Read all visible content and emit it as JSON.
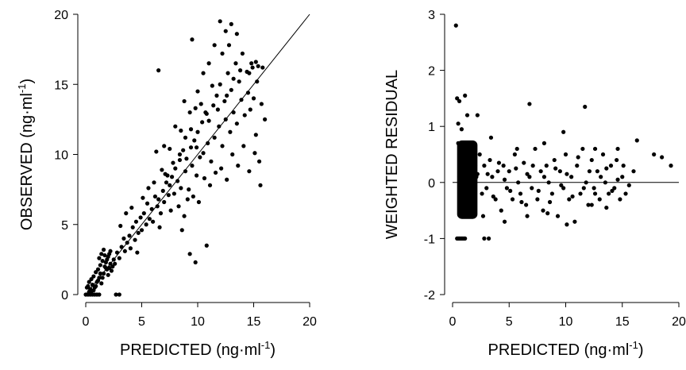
{
  "chart_data": [
    {
      "type": "scatter",
      "xlabel": "PREDICTED (ng·ml",
      "xlabel_sup": "-1",
      "xlabel_end": ")",
      "ylabel": "OBSERVED (ng·ml",
      "ylabel_sup": "-1",
      "ylabel_end": ")",
      "xlim": [
        0,
        20
      ],
      "ylim": [
        0,
        20
      ],
      "xticks": [
        "0",
        "5",
        "10",
        "15",
        "20"
      ],
      "yticks": [
        "0",
        "5",
        "10",
        "15",
        "20"
      ],
      "grid": false,
      "reference_line": {
        "type": "identity",
        "from": [
          0,
          0
        ],
        "to": [
          20,
          20
        ]
      },
      "points": [
        [
          0.0,
          0.0
        ],
        [
          0.2,
          0.0
        ],
        [
          0.4,
          0.0
        ],
        [
          0.6,
          0.0
        ],
        [
          0.8,
          0.0
        ],
        [
          1.0,
          0.0
        ],
        [
          1.2,
          0.0
        ],
        [
          2.7,
          0.0
        ],
        [
          3.0,
          0.0
        ],
        [
          0.1,
          0.5
        ],
        [
          0.2,
          0.6
        ],
        [
          0.3,
          0.9
        ],
        [
          0.4,
          0.4
        ],
        [
          0.5,
          1.1
        ],
        [
          0.6,
          0.7
        ],
        [
          0.7,
          1.3
        ],
        [
          0.8,
          0.5
        ],
        [
          0.9,
          1.6
        ],
        [
          1.0,
          0.9
        ],
        [
          1.1,
          1.8
        ],
        [
          1.2,
          1.2
        ],
        [
          1.3,
          2.1
        ],
        [
          1.4,
          0.8
        ],
        [
          1.5,
          2.4
        ],
        [
          1.6,
          1.5
        ],
        [
          1.7,
          2.8
        ],
        [
          1.8,
          1.9
        ],
        [
          1.9,
          2.5
        ],
        [
          2.0,
          1.4
        ],
        [
          2.1,
          2.9
        ],
        [
          2.2,
          2.2
        ],
        [
          2.3,
          1.7
        ],
        [
          1.1,
          1.0
        ],
        [
          1.3,
          1.5
        ],
        [
          1.5,
          1.2
        ],
        [
          1.7,
          2.0
        ],
        [
          1.9,
          1.8
        ],
        [
          2.1,
          1.9
        ],
        [
          0.5,
          0.2
        ],
        [
          0.7,
          0.3
        ],
        [
          0.9,
          0.6
        ],
        [
          1.2,
          2.6
        ],
        [
          1.4,
          2.9
        ],
        [
          1.6,
          3.2
        ],
        [
          1.8,
          2.3
        ],
        [
          2.0,
          2.7
        ],
        [
          2.2,
          3.1
        ],
        [
          2.4,
          2.0
        ],
        [
          0.3,
          0.2
        ],
        [
          2.5,
          2.5
        ],
        [
          2.6,
          2.2
        ],
        [
          2.8,
          3.0
        ],
        [
          3.0,
          2.6
        ],
        [
          3.2,
          3.4
        ],
        [
          3.4,
          4.0
        ],
        [
          3.5,
          3.1
        ],
        [
          3.7,
          3.7
        ],
        [
          3.9,
          4.2
        ],
        [
          4.0,
          3.3
        ],
        [
          4.2,
          4.8
        ],
        [
          4.4,
          3.9
        ],
        [
          4.5,
          5.2
        ],
        [
          4.7,
          4.4
        ],
        [
          4.9,
          5.5
        ],
        [
          5.0,
          4.6
        ],
        [
          5.2,
          5.8
        ],
        [
          5.4,
          5.0
        ],
        [
          5.5,
          6.5
        ],
        [
          5.7,
          5.4
        ],
        [
          5.9,
          6.1
        ],
        [
          6.0,
          5.2
        ],
        [
          6.2,
          7.0
        ],
        [
          6.4,
          6.3
        ],
        [
          6.5,
          6.8
        ],
        [
          6.7,
          5.8
        ],
        [
          6.9,
          7.4
        ],
        [
          7.0,
          6.6
        ],
        [
          7.2,
          8.0
        ],
        [
          7.4,
          7.1
        ],
        [
          3.1,
          4.9
        ],
        [
          3.6,
          5.8
        ],
        [
          4.1,
          6.2
        ],
        [
          4.6,
          3.0
        ],
        [
          5.1,
          6.9
        ],
        [
          5.6,
          7.6
        ],
        [
          6.1,
          8.0
        ],
        [
          6.6,
          4.8
        ],
        [
          7.1,
          8.6
        ],
        [
          7.6,
          6.0
        ],
        [
          7.5,
          7.8
        ],
        [
          7.7,
          8.4
        ],
        [
          7.9,
          7.2
        ],
        [
          8.0,
          9.0
        ],
        [
          8.2,
          8.1
        ],
        [
          8.4,
          9.6
        ],
        [
          8.5,
          7.6
        ],
        [
          8.7,
          10.3
        ],
        [
          8.9,
          8.8
        ],
        [
          9.0,
          9.7
        ],
        [
          9.2,
          7.5
        ],
        [
          9.4,
          10.5
        ],
        [
          9.5,
          9.2
        ],
        [
          9.7,
          11.0
        ],
        [
          9.9,
          8.5
        ],
        [
          10.0,
          11.6
        ],
        [
          10.2,
          9.8
        ],
        [
          10.4,
          12.3
        ],
        [
          10.5,
          10.1
        ],
        [
          10.7,
          13.0
        ],
        [
          10.9,
          10.8
        ],
        [
          11.0,
          12.4
        ],
        [
          11.2,
          9.5
        ],
        [
          11.4,
          13.5
        ],
        [
          11.5,
          11.2
        ],
        [
          11.7,
          14.2
        ],
        [
          11.9,
          12.0
        ],
        [
          12.0,
          15.0
        ],
        [
          12.2,
          10.6
        ],
        [
          12.4,
          13.8
        ],
        [
          12.5,
          12.5
        ],
        [
          12.7,
          15.8
        ],
        [
          12.9,
          11.6
        ],
        [
          13.0,
          14.6
        ],
        [
          13.2,
          13.0
        ],
        [
          13.4,
          16.5
        ],
        [
          13.5,
          12.2
        ],
        [
          13.7,
          15.2
        ],
        [
          13.9,
          13.9
        ],
        [
          14.0,
          17.2
        ],
        [
          14.2,
          12.8
        ],
        [
          14.4,
          15.9
        ],
        [
          14.5,
          14.4
        ],
        [
          14.7,
          13.2
        ],
        [
          14.9,
          16.2
        ],
        [
          15.0,
          14.0
        ],
        [
          15.2,
          11.4
        ],
        [
          15.4,
          16.3
        ],
        [
          15.5,
          9.5
        ],
        [
          15.7,
          13.6
        ],
        [
          8.3,
          6.3
        ],
        [
          8.8,
          5.6
        ],
        [
          9.3,
          2.9
        ],
        [
          9.8,
          2.3
        ],
        [
          10.8,
          3.5
        ],
        [
          8.6,
          4.6
        ],
        [
          9.1,
          6.8
        ],
        [
          9.6,
          7.0
        ],
        [
          10.1,
          6.6
        ],
        [
          10.6,
          8.3
        ],
        [
          11.1,
          7.8
        ],
        [
          11.6,
          8.7
        ],
        [
          12.1,
          9.0
        ],
        [
          12.6,
          8.2
        ],
        [
          13.1,
          10.0
        ],
        [
          13.6,
          9.2
        ],
        [
          14.1,
          10.6
        ],
        [
          14.6,
          8.8
        ],
        [
          15.1,
          10.1
        ],
        [
          15.6,
          7.8
        ],
        [
          6.5,
          16.0
        ],
        [
          9.5,
          18.2
        ],
        [
          12.0,
          19.5
        ],
        [
          12.5,
          18.8
        ],
        [
          13.0,
          19.3
        ],
        [
          13.5,
          18.6
        ],
        [
          12.8,
          17.8
        ],
        [
          12.2,
          17.2
        ],
        [
          11.5,
          17.8
        ],
        [
          11.0,
          16.5
        ],
        [
          10.5,
          15.8
        ],
        [
          10.0,
          14.5
        ],
        [
          9.8,
          13.3
        ],
        [
          9.3,
          13.0
        ],
        [
          8.8,
          13.8
        ],
        [
          8.5,
          11.7
        ],
        [
          8.0,
          12.0
        ],
        [
          7.5,
          10.4
        ],
        [
          7.0,
          10.6
        ],
        [
          6.3,
          10.2
        ],
        [
          14.8,
          16.5
        ],
        [
          15.2,
          16.6
        ],
        [
          15.8,
          16.2
        ],
        [
          16.0,
          12.5
        ],
        [
          15.3,
          15.2
        ],
        [
          14.6,
          15.8
        ],
        [
          13.8,
          16.0
        ],
        [
          13.2,
          15.4
        ],
        [
          12.6,
          14.2
        ],
        [
          11.8,
          13.2
        ],
        [
          11.3,
          14.9
        ],
        [
          10.8,
          12.9
        ],
        [
          10.3,
          13.6
        ],
        [
          9.9,
          10.5
        ],
        [
          9.4,
          11.8
        ],
        [
          8.9,
          11.2
        ],
        [
          8.4,
          10.0
        ],
        [
          7.8,
          9.4
        ],
        [
          7.3,
          8.5
        ],
        [
          6.8,
          8.9
        ]
      ]
    },
    {
      "type": "scatter",
      "xlabel": "PREDICTED (ng·ml",
      "xlabel_sup": "-1",
      "xlabel_end": ")",
      "ylabel": "WEIGHTED RESIDUAL",
      "xlim": [
        0,
        20
      ],
      "ylim": [
        -2,
        3
      ],
      "xticks": [
        "0",
        "5",
        "10",
        "15",
        "20"
      ],
      "yticks": [
        "-2",
        "-1",
        "0",
        "1",
        "2",
        "3"
      ],
      "grid": false,
      "reference_line": {
        "type": "horizontal",
        "y": 0,
        "from_x": 0,
        "to_x": 20
      },
      "points": [
        [
          0.3,
          2.8
        ],
        [
          0.4,
          1.5
        ],
        [
          0.6,
          1.45
        ],
        [
          1.1,
          1.55
        ],
        [
          0.5,
          1.05
        ],
        [
          0.8,
          0.95
        ],
        [
          1.3,
          1.2
        ],
        [
          2.2,
          1.2
        ],
        [
          6.8,
          1.4
        ],
        [
          11.7,
          1.35
        ],
        [
          0.4,
          -1.0
        ],
        [
          0.5,
          -1.0
        ],
        [
          0.6,
          -1.0
        ],
        [
          0.7,
          -1.0
        ],
        [
          0.8,
          -1.0
        ],
        [
          0.9,
          -1.0
        ],
        [
          1.0,
          -1.0
        ],
        [
          1.1,
          -1.0
        ],
        [
          2.8,
          -1.0
        ],
        [
          3.2,
          -1.0
        ],
        [
          0.5,
          0.7
        ],
        [
          0.6,
          0.5
        ],
        [
          0.7,
          0.3
        ],
        [
          0.8,
          0.1
        ],
        [
          0.9,
          -0.1
        ],
        [
          1.0,
          -0.3
        ],
        [
          1.1,
          -0.5
        ],
        [
          1.2,
          0.6
        ],
        [
          1.3,
          0.4
        ],
        [
          1.4,
          0.2
        ],
        [
          1.5,
          0.0
        ],
        [
          1.6,
          -0.2
        ],
        [
          1.7,
          -0.4
        ],
        [
          1.8,
          -0.6
        ],
        [
          1.9,
          0.5
        ],
        [
          2.0,
          0.3
        ],
        [
          2.1,
          0.1
        ],
        [
          1.0,
          0.65
        ],
        [
          1.2,
          -0.55
        ],
        [
          1.4,
          0.45
        ],
        [
          1.6,
          -0.35
        ],
        [
          1.8,
          0.25
        ],
        [
          2.0,
          -0.15
        ],
        [
          0.9,
          0.35
        ],
        [
          1.1,
          -0.25
        ],
        [
          1.3,
          0.05
        ],
        [
          1.5,
          -0.45
        ],
        [
          1.7,
          0.55
        ],
        [
          1.9,
          -0.05
        ],
        [
          2.2,
          0.15
        ],
        [
          0.7,
          -0.2
        ],
        [
          0.8,
          0.4
        ],
        [
          0.9,
          0.2
        ],
        [
          1.0,
          0.0
        ],
        [
          1.2,
          0.3
        ],
        [
          1.4,
          -0.1
        ],
        [
          1.6,
          0.35
        ],
        [
          1.8,
          -0.3
        ],
        [
          2.0,
          0.45
        ],
        [
          0.6,
          0.1
        ],
        [
          2.4,
          0.5
        ],
        [
          2.6,
          -0.2
        ],
        [
          2.8,
          0.3
        ],
        [
          3.0,
          -0.1
        ],
        [
          3.3,
          0.4
        ],
        [
          3.5,
          0.1
        ],
        [
          3.8,
          -0.3
        ],
        [
          4.0,
          0.2
        ],
        [
          4.3,
          -0.5
        ],
        [
          4.5,
          0.3
        ],
        [
          4.8,
          -0.1
        ],
        [
          5.0,
          0.2
        ],
        [
          5.3,
          -0.3
        ],
        [
          5.5,
          0.5
        ],
        [
          5.8,
          0.0
        ],
        [
          6.0,
          -0.2
        ],
        [
          6.3,
          0.35
        ],
        [
          6.5,
          -0.4
        ],
        [
          6.8,
          0.1
        ],
        [
          7.0,
          -0.1
        ],
        [
          7.3,
          0.6
        ],
        [
          7.5,
          -0.3
        ],
        [
          7.8,
          0.2
        ],
        [
          8.0,
          -0.5
        ],
        [
          8.3,
          0.3
        ],
        [
          8.5,
          0.0
        ],
        [
          8.8,
          -0.2
        ],
        [
          9.0,
          0.4
        ],
        [
          9.3,
          -0.6
        ],
        [
          9.5,
          0.2
        ],
        [
          9.8,
          -0.1
        ],
        [
          10.0,
          0.5
        ],
        [
          10.3,
          -0.3
        ],
        [
          10.5,
          0.1
        ],
        [
          10.8,
          -0.7
        ],
        [
          11.0,
          0.3
        ],
        [
          11.3,
          -0.2
        ],
        [
          11.5,
          0.6
        ],
        [
          11.8,
          0.0
        ],
        [
          12.0,
          -0.4
        ],
        [
          12.3,
          0.4
        ],
        [
          12.5,
          -0.1
        ],
        [
          12.8,
          0.2
        ],
        [
          13.0,
          -0.3
        ],
        [
          13.3,
          0.5
        ],
        [
          13.5,
          0.0
        ],
        [
          13.8,
          -0.2
        ],
        [
          14.0,
          0.3
        ],
        [
          14.3,
          -0.1
        ],
        [
          14.5,
          0.4
        ],
        [
          14.8,
          -0.3
        ],
        [
          15.0,
          0.1
        ],
        [
          15.3,
          -0.2
        ],
        [
          3.4,
          0.8
        ],
        [
          5.7,
          0.6
        ],
        [
          8.1,
          0.7
        ],
        [
          9.8,
          0.9
        ],
        [
          12.6,
          0.6
        ],
        [
          14.6,
          0.6
        ],
        [
          16.3,
          0.75
        ],
        [
          17.8,
          0.5
        ],
        [
          18.5,
          0.45
        ],
        [
          19.3,
          0.3
        ],
        [
          2.7,
          -0.6
        ],
        [
          4.6,
          -0.7
        ],
        [
          6.6,
          -0.6
        ],
        [
          8.4,
          -0.55
        ],
        [
          10.1,
          -0.75
        ],
        [
          12.3,
          -0.4
        ],
        [
          13.6,
          -0.45
        ],
        [
          3.1,
          0.15
        ],
        [
          3.6,
          -0.25
        ],
        [
          4.1,
          0.35
        ],
        [
          4.6,
          0.05
        ],
        [
          5.1,
          -0.15
        ],
        [
          5.6,
          0.25
        ],
        [
          6.1,
          -0.35
        ],
        [
          6.6,
          0.15
        ],
        [
          7.1,
          0.3
        ],
        [
          7.6,
          -0.15
        ],
        [
          8.1,
          0.1
        ],
        [
          8.6,
          -0.35
        ],
        [
          9.1,
          0.25
        ],
        [
          9.6,
          -0.05
        ],
        [
          10.1,
          0.15
        ],
        [
          10.6,
          -0.25
        ],
        [
          11.1,
          0.45
        ],
        [
          11.6,
          -0.1
        ],
        [
          12.1,
          0.2
        ],
        [
          12.6,
          -0.2
        ],
        [
          13.1,
          0.1
        ],
        [
          13.6,
          0.25
        ],
        [
          14.1,
          -0.15
        ],
        [
          14.6,
          0.05
        ],
        [
          15.1,
          0.3
        ],
        [
          15.6,
          -0.05
        ],
        [
          16.0,
          0.2
        ]
      ],
      "dense_cluster": {
        "x_range": [
          0.4,
          2.2
        ],
        "y_range": [
          -0.65,
          0.75
        ]
      }
    }
  ]
}
